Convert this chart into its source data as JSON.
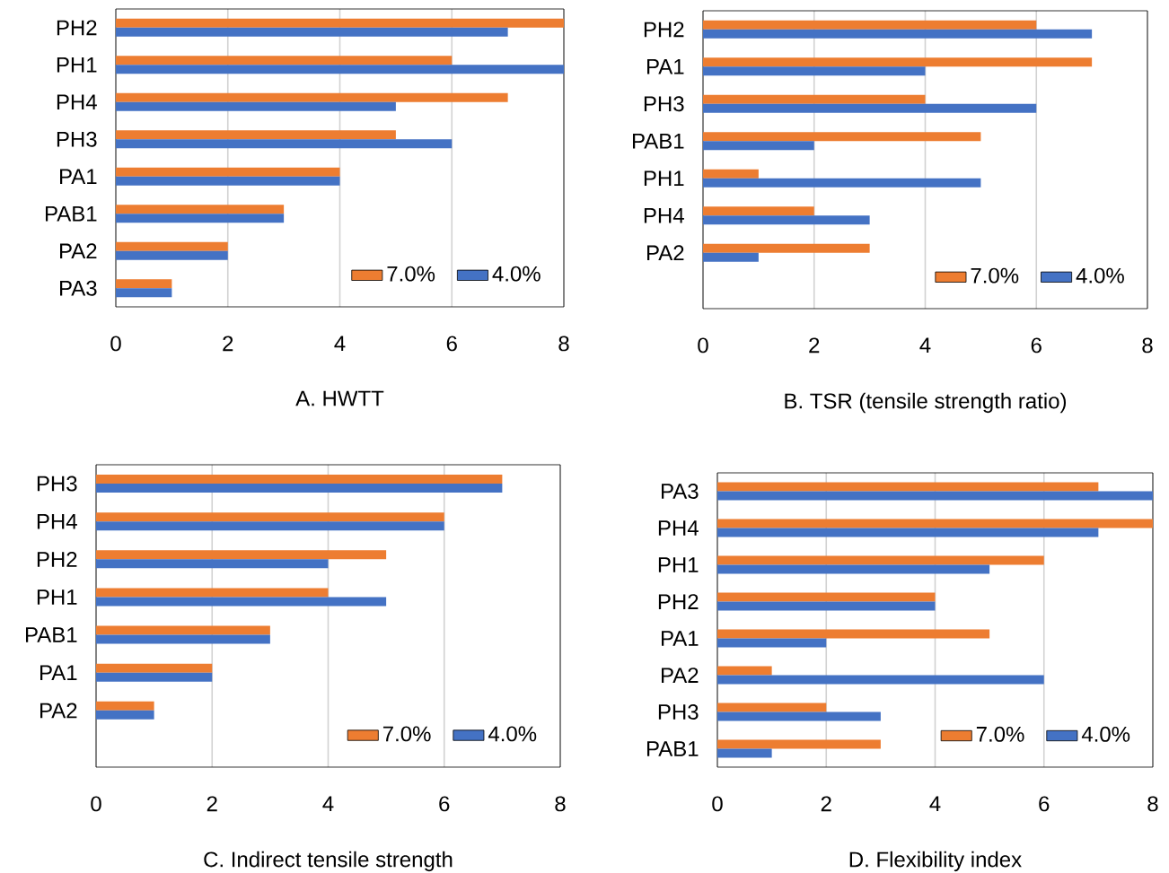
{
  "chart_data": [
    {
      "type": "bar",
      "orientation": "horizontal",
      "xlabel": "A. HWTT",
      "categories": [
        "PH2",
        "PH1",
        "PH4",
        "PH3",
        "PA1",
        "PAB1",
        "PA2",
        "PA3"
      ],
      "xlim": [
        0,
        8
      ],
      "xticks": [
        0,
        2,
        4,
        6,
        8
      ],
      "grid": "x",
      "legend": "bottom right",
      "series": [
        {
          "name": "7.0%",
          "color": "#ed7d31",
          "values": [
            8,
            6,
            7,
            5,
            4,
            3,
            2,
            1
          ]
        },
        {
          "name": "4.0%",
          "color": "#4472c4",
          "values": [
            7,
            8,
            5,
            6,
            4,
            3,
            2,
            1
          ]
        }
      ]
    },
    {
      "type": "bar",
      "orientation": "horizontal",
      "xlabel": "B. TSR (tensile strength ratio)",
      "categories": [
        "PH2",
        "PA1",
        "PH3",
        "PAB1",
        "PH1",
        "PH4",
        "PA2",
        null
      ],
      "xlim": [
        0,
        8
      ],
      "xticks": [
        0,
        2,
        4,
        6,
        8
      ],
      "grid": "x",
      "legend": "bottom right",
      "series": [
        {
          "name": "7.0%",
          "color": "#ed7d31",
          "values": [
            6,
            7,
            4,
            5,
            1,
            2,
            3,
            null
          ]
        },
        {
          "name": "4.0%",
          "color": "#4472c4",
          "values": [
            7,
            4,
            6,
            2,
            5,
            3,
            1,
            null
          ]
        }
      ]
    },
    {
      "type": "bar",
      "orientation": "horizontal",
      "xlabel": "C. Indirect tensile strength",
      "categories": [
        "PH3",
        "PH4",
        "PH2",
        "PH1",
        "PAB1",
        "PA1",
        "PA2",
        null
      ],
      "xlim": [
        0,
        8
      ],
      "xticks": [
        0,
        2,
        4,
        6,
        8
      ],
      "grid": "x",
      "legend": "bottom right",
      "series": [
        {
          "name": "7.0%",
          "color": "#ed7d31",
          "values": [
            7,
            6,
            5,
            4,
            3,
            2,
            1,
            null
          ]
        },
        {
          "name": "4.0%",
          "color": "#4472c4",
          "values": [
            7,
            6,
            4,
            5,
            3,
            2,
            1,
            null
          ]
        }
      ]
    },
    {
      "type": "bar",
      "orientation": "horizontal",
      "xlabel": "D. Flexibility index",
      "categories": [
        "PA3",
        "PH4",
        "PH1",
        "PH2",
        "PA1",
        "PA2",
        "PH3",
        "PAB1"
      ],
      "xlim": [
        0,
        8
      ],
      "xticks": [
        0,
        2,
        4,
        6,
        8
      ],
      "grid": "x",
      "legend": "bottom right",
      "series": [
        {
          "name": "7.0%",
          "color": "#ed7d31",
          "values": [
            7,
            8,
            6,
            4,
            5,
            1,
            2,
            3
          ]
        },
        {
          "name": "4.0%",
          "color": "#4472c4",
          "values": [
            8,
            7,
            5,
            4,
            2,
            6,
            3,
            1
          ]
        }
      ]
    }
  ]
}
